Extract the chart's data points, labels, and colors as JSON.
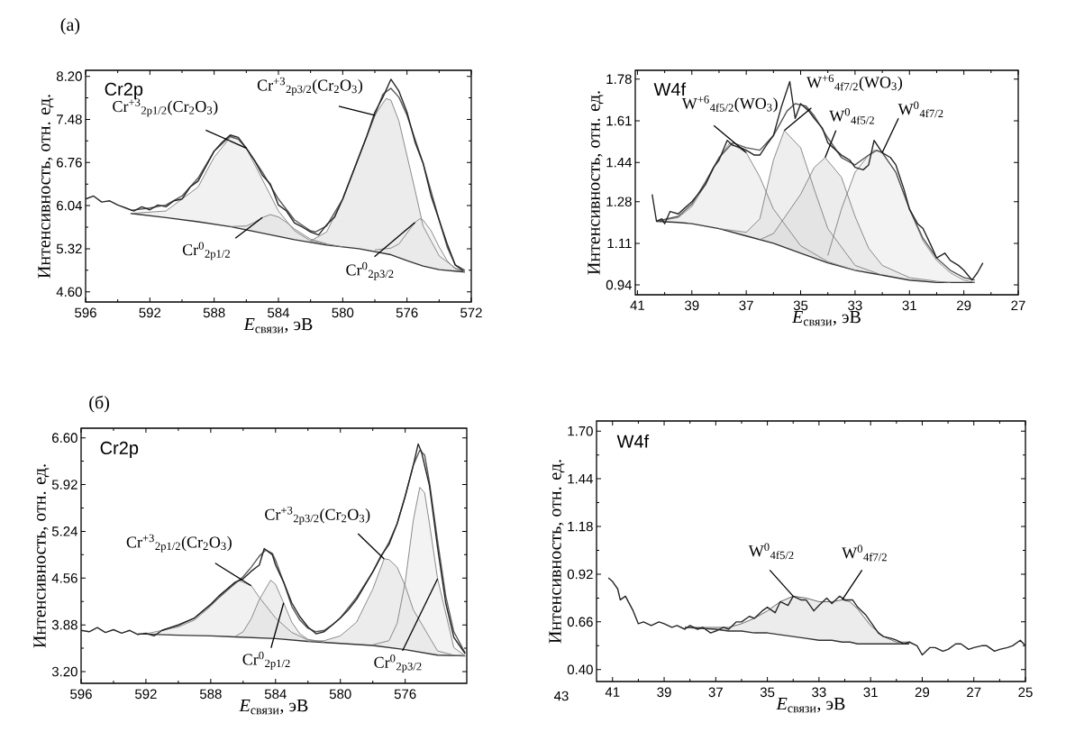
{
  "chart_data": [
    {
      "type": "line",
      "title": "Cr2p",
      "xlabel": "*E*$_{связи}$, эВ",
      "ylabel": "Интенсивность, отн. ед.",
      "xlim": [
        596,
        572
      ],
      "ylim": [
        4.43,
        8.3
      ],
      "xticks": [
        596,
        592,
        588,
        584,
        580,
        576,
        572
      ],
      "yticks": [
        {
          "value": 4.6,
          "label": "4.60"
        },
        5.32,
        6.04,
        6.76,
        7.48,
        {
          "value": 8.2,
          "label": "8.20"
        }
      ],
      "annotations": [
        {
          "text": "Cr$^{+3}$$_{2p1/2}$(Cr$_{2}$O$_{3}$)",
          "x": 586,
          "y": 7.0
        },
        {
          "text": "Cr$^{+3}$$_{2p3/2}$(Cr$_{2}$O$_{3}$)",
          "x": 578,
          "y": 7.55
        },
        {
          "text": "Cr$^{0}$$_{2p1/2}$",
          "x": 585,
          "y": 5.84
        },
        {
          "text": "Cr$^{0}$$_{2p3/2}$",
          "x": 575.5,
          "y": 5.76
        },
        "(a)"
      ],
      "series": [
        {
          "color": "#333333",
          "x": [
            593.2,
            591,
            589,
            587,
            585,
            583,
            581,
            579,
            577,
            576,
            575,
            574,
            572.4
          ],
          "values": [
            5.91,
            5.84,
            5.77,
            5.69,
            5.58,
            5.47,
            5.38,
            5.32,
            5.22,
            5.12,
            5.03,
            4.97,
            4.93
          ]
        },
        {
          "color": "#7f7f7f",
          "x": [
            593.2,
            591,
            589,
            588,
            587,
            586.5,
            586,
            584,
            583,
            582,
            581,
            580
          ],
          "values": [
            5.91,
            5.95,
            6.35,
            6.85,
            7.18,
            7.15,
            7.0,
            5.95,
            5.62,
            5.45,
            5.4,
            5.35
          ],
          "upper": [
            5.91,
            5.95,
            6.35,
            6.85,
            7.18,
            7.15,
            7.0,
            5.95,
            5.62,
            5.45,
            5.4,
            5.35
          ],
          "lower": [
            5.91,
            5.84,
            5.77,
            5.73,
            5.69,
            5.66,
            5.64,
            5.52,
            5.47,
            5.42,
            5.38,
            5.35
          ]
        },
        {
          "color": "#7f7f7f",
          "x": [
            587,
            586,
            585.5,
            585,
            584.5,
            584,
            583.5,
            583,
            582,
            581
          ],
          "values": [
            5.69,
            5.7,
            5.76,
            5.84,
            5.89,
            5.85,
            5.76,
            5.65,
            5.48,
            5.4
          ],
          "upper": [
            5.69,
            5.7,
            5.76,
            5.84,
            5.89,
            5.85,
            5.76,
            5.65,
            5.48,
            5.4
          ],
          "lower": [
            5.69,
            5.64,
            5.61,
            5.58,
            5.55,
            5.52,
            5.5,
            5.47,
            5.42,
            5.38
          ]
        },
        {
          "color": "#7f7f7f",
          "x": [
            582,
            581,
            580,
            579,
            578,
            577.3,
            577,
            576.5,
            575.5,
            575,
            574.5,
            574,
            573,
            572.4
          ],
          "values": [
            5.45,
            5.6,
            6.15,
            6.85,
            7.55,
            7.83,
            7.8,
            7.45,
            6.3,
            5.7,
            5.45,
            5.2,
            5.0,
            4.93
          ],
          "upper": [
            5.45,
            5.6,
            6.15,
            6.85,
            7.55,
            7.83,
            7.8,
            7.45,
            6.3,
            5.7,
            5.45,
            5.2,
            5.0,
            4.93
          ],
          "lower": [
            5.42,
            5.38,
            5.35,
            5.32,
            5.27,
            5.24,
            5.22,
            5.17,
            5.07,
            5.03,
            5.0,
            4.97,
            4.95,
            4.93
          ]
        },
        {
          "color": "#7f7f7f",
          "x": [
            578,
            577,
            576.5,
            575.5,
            575.2,
            575,
            574.5,
            574,
            573.5,
            573,
            572.4
          ],
          "values": [
            5.3,
            5.33,
            5.4,
            5.76,
            5.82,
            5.8,
            5.62,
            5.35,
            5.12,
            4.98,
            4.94
          ],
          "upper": [
            5.3,
            5.33,
            5.4,
            5.76,
            5.82,
            5.8,
            5.62,
            5.35,
            5.12,
            4.98,
            4.94
          ],
          "lower": [
            5.27,
            5.22,
            5.17,
            5.07,
            5.05,
            5.03,
            5.0,
            4.97,
            4.96,
            4.95,
            4.93
          ]
        },
        {
          "color": "#595959",
          "x": [
            593.2,
            592,
            591,
            590,
            589,
            588,
            587,
            586.5,
            586,
            585,
            584,
            583,
            582,
            581.7,
            581,
            580,
            579,
            578,
            577.5,
            577,
            576.5,
            576,
            575,
            574,
            573.5,
            573,
            572.4
          ],
          "values": [
            5.96,
            6.0,
            6.05,
            6.2,
            6.5,
            6.95,
            7.2,
            7.15,
            7.0,
            6.6,
            6.15,
            5.8,
            5.62,
            5.6,
            5.7,
            6.15,
            6.85,
            7.55,
            7.9,
            8.0,
            7.85,
            7.55,
            6.75,
            5.8,
            5.35,
            5.05,
            4.96
          ]
        },
        {
          "color": "#262626",
          "x": [
            596,
            595.5,
            595,
            594.5,
            594,
            593.5,
            593,
            592.5,
            592,
            591.5,
            591,
            590.5,
            590,
            589.5,
            589,
            588.5,
            588,
            587.5,
            587,
            586.5,
            586,
            585.5,
            585,
            584.5,
            584,
            583.5,
            583,
            582.5,
            582,
            581.5,
            581,
            580.5,
            580,
            579.5,
            579,
            578.5,
            578,
            577.5,
            577,
            576.5,
            576,
            575.5,
            575,
            574.5,
            574,
            573.5,
            573,
            572.5
          ],
          "values": [
            6.15,
            6.2,
            6.1,
            6.12,
            6.05,
            6.0,
            5.95,
            6.02,
            5.97,
            6.05,
            6.02,
            6.12,
            6.15,
            6.35,
            6.45,
            6.7,
            6.95,
            7.1,
            7.22,
            7.18,
            7.0,
            6.8,
            6.55,
            6.4,
            6.05,
            5.95,
            5.75,
            5.68,
            5.6,
            5.55,
            5.72,
            5.85,
            6.15,
            6.5,
            6.85,
            7.2,
            7.6,
            7.85,
            8.15,
            7.95,
            7.6,
            7.1,
            6.75,
            6.2,
            5.8,
            5.4,
            5.05,
            4.95
          ]
        }
      ]
    },
    {
      "type": "line",
      "title": "W4f",
      "xlabel": "*E*$_{связи}$, эВ",
      "ylabel": "Интенсивность, отн. ед.",
      "xlim": [
        41.08,
        27
      ],
      "ylim": [
        0.9,
        1.816
      ],
      "xticks": [
        41,
        39,
        37,
        35,
        33,
        31,
        29,
        27
      ],
      "yticks": [
        0.94,
        1.11,
        1.28,
        1.44,
        1.61,
        1.78
      ],
      "annotations": [
        {
          "text": "W$^{+6}$$_{4f5/2}$(WO$_{3}$)",
          "x": 37,
          "y": 1.48
        },
        {
          "text": "W$^{+6}$$_{4f7/2}$(WO$_{3}$)",
          "x": 35.6,
          "y": 1.57
        },
        {
          "text": "W$^{0}$$_{4f5/2}$",
          "x": 34.1,
          "y": 1.46
        },
        {
          "text": "W$^{0}$$_{4f7/2}$",
          "x": 32,
          "y": 1.48
        }
      ],
      "series": [
        {
          "color": "#333333",
          "x": [
            40.3,
            39.5,
            39,
            38,
            37,
            36,
            35,
            34,
            33,
            32,
            31,
            30,
            29,
            28.6
          ],
          "values": [
            1.2,
            1.195,
            1.19,
            1.17,
            1.14,
            1.11,
            1.07,
            1.03,
            1.0,
            0.98,
            0.96,
            0.95,
            0.95,
            0.95
          ]
        },
        {
          "color": "#7f7f7f",
          "x": [
            40.3,
            39.5,
            39,
            38.5,
            38,
            37.6,
            37,
            36.5,
            36,
            35,
            34,
            33
          ],
          "values": [
            1.2,
            1.215,
            1.26,
            1.35,
            1.46,
            1.52,
            1.48,
            1.38,
            1.25,
            1.1,
            1.035,
            1.0
          ],
          "upper": [
            1.2,
            1.215,
            1.26,
            1.35,
            1.46,
            1.52,
            1.48,
            1.38,
            1.25,
            1.1,
            1.035,
            1.0
          ],
          "lower": [
            1.2,
            1.195,
            1.19,
            1.18,
            1.17,
            1.16,
            1.14,
            1.125,
            1.11,
            1.07,
            1.03,
            1.0
          ]
        },
        {
          "color": "#7f7f7f",
          "x": [
            38,
            37,
            36.5,
            36,
            35.6,
            35,
            34.5,
            34,
            33,
            32
          ],
          "values": [
            1.17,
            1.155,
            1.21,
            1.45,
            1.57,
            1.5,
            1.33,
            1.17,
            1.02,
            0.98
          ],
          "upper": [
            1.17,
            1.155,
            1.21,
            1.45,
            1.57,
            1.5,
            1.33,
            1.17,
            1.02,
            0.98
          ],
          "lower": [
            1.17,
            1.14,
            1.125,
            1.11,
            1.095,
            1.07,
            1.05,
            1.03,
            1.0,
            0.98
          ]
        },
        {
          "color": "#7f7f7f",
          "x": [
            36.5,
            36,
            35,
            34.5,
            34.1,
            33.5,
            33,
            32.5,
            32,
            31,
            30,
            29.5
          ],
          "values": [
            1.125,
            1.15,
            1.31,
            1.42,
            1.46,
            1.38,
            1.22,
            1.09,
            1.02,
            0.97,
            0.955,
            0.95
          ],
          "upper": [
            1.125,
            1.15,
            1.31,
            1.42,
            1.46,
            1.38,
            1.22,
            1.09,
            1.02,
            0.97,
            0.955,
            0.95
          ],
          "lower": [
            1.125,
            1.11,
            1.07,
            1.05,
            1.035,
            1.015,
            1.0,
            0.99,
            0.98,
            0.96,
            0.95,
            0.95
          ]
        },
        {
          "color": "#7f7f7f",
          "x": [
            34,
            33.5,
            33,
            32.5,
            32.3,
            32,
            31.5,
            31,
            30.5,
            30,
            29.5,
            29,
            28.6
          ],
          "values": [
            1.06,
            1.25,
            1.4,
            1.47,
            1.49,
            1.48,
            1.4,
            1.25,
            1.12,
            1.04,
            0.99,
            0.96,
            0.95
          ],
          "upper": [
            1.06,
            1.25,
            1.4,
            1.47,
            1.49,
            1.48,
            1.4,
            1.25,
            1.12,
            1.04,
            0.99,
            0.96,
            0.95
          ],
          "lower": [
            1.03,
            1.015,
            1.0,
            0.99,
            0.985,
            0.98,
            0.97,
            0.96,
            0.955,
            0.95,
            0.95,
            0.95,
            0.95
          ]
        },
        {
          "color": "#595959",
          "x": [
            40.3,
            39.5,
            39,
            38.5,
            38,
            37.5,
            37,
            36.5,
            36,
            35.5,
            35.2,
            34.8,
            34.5,
            34,
            33.5,
            33,
            32.5,
            32.2,
            32,
            31.5,
            31,
            30.5,
            30,
            29.5,
            29,
            28.6
          ],
          "values": [
            1.2,
            1.22,
            1.27,
            1.36,
            1.46,
            1.52,
            1.5,
            1.49,
            1.55,
            1.65,
            1.68,
            1.67,
            1.63,
            1.54,
            1.46,
            1.43,
            1.47,
            1.49,
            1.48,
            1.4,
            1.25,
            1.13,
            1.05,
            1.0,
            0.97,
            0.96
          ]
        },
        {
          "color": "#262626",
          "x": [
            40.46,
            40.3,
            40.1,
            40,
            39.8,
            39.5,
            39.2,
            39,
            38.7,
            38.5,
            38.2,
            38,
            37.7,
            37.5,
            37.2,
            37,
            36.7,
            36.5,
            36.2,
            36,
            35.7,
            35.4,
            35.2,
            35,
            34.7,
            34.5,
            34.2,
            34,
            33.7,
            33.5,
            33.2,
            33,
            32.7,
            32.5,
            32.3,
            32,
            31.7,
            31.5,
            31.2,
            31,
            30.7,
            30.5,
            30.2,
            30,
            29.7,
            29.5,
            29.2,
            29,
            28.7,
            28.5,
            28.3
          ],
          "values": [
            1.31,
            1.2,
            1.21,
            1.19,
            1.24,
            1.23,
            1.26,
            1.28,
            1.32,
            1.35,
            1.42,
            1.45,
            1.53,
            1.51,
            1.5,
            1.49,
            1.47,
            1.47,
            1.52,
            1.55,
            1.67,
            1.77,
            1.62,
            1.68,
            1.65,
            1.62,
            1.58,
            1.52,
            1.49,
            1.47,
            1.45,
            1.42,
            1.41,
            1.43,
            1.53,
            1.48,
            1.46,
            1.43,
            1.33,
            1.25,
            1.19,
            1.17,
            1.1,
            1.05,
            1.07,
            1.04,
            1.02,
            1.0,
            0.96,
            0.99,
            1.03
          ]
        }
      ]
    },
    {
      "type": "line",
      "title": "Cr2p",
      "xlabel": "*E*$_{связи}$, эВ",
      "ylabel": "Интенсивность, отн. ед.",
      "xlim": [
        596,
        572.2
      ],
      "ylim": [
        3.03,
        6.74
      ],
      "xticks": [
        596,
        592,
        588,
        584,
        580,
        576
      ],
      "yticks": [
        {
          "value": 3.2,
          "label": "3.20"
        },
        3.88,
        4.56,
        5.24,
        5.92,
        {
          "value": 6.6,
          "label": "6.60"
        }
      ],
      "annotations": [
        {
          "text": "Cr$^{+3}$$_{2p1/2}$(Cr$_{2}$O$_{3}$)",
          "x": 585.5,
          "y": 4.45
        },
        {
          "text": "Cr$^{+3}$$_{2p3/2}$(Cr$_{2}$O$_{3}$)",
          "x": 577.3,
          "y": 4.84
        },
        {
          "text": "Cr$^{0}$$_{2p1/2}$",
          "x": 583.5,
          "y": 4.2
        },
        {
          "text": "Cr$^{0}$$_{2p3/2}$",
          "x": 574,
          "y": 4.55
        },
        "(б)"
      ],
      "series": [
        {
          "color": "#333333",
          "x": [
            592.5,
            590,
            588,
            586,
            584,
            582,
            580,
            578,
            576,
            574,
            572.3
          ],
          "values": [
            3.75,
            3.73,
            3.72,
            3.7,
            3.68,
            3.64,
            3.61,
            3.58,
            3.52,
            3.44,
            3.43
          ]
        },
        {
          "color": "#7f7f7f",
          "x": [
            592,
            590,
            589,
            588,
            587,
            586.3,
            585.5,
            585,
            584,
            583,
            582,
            581
          ],
          "values": [
            3.75,
            3.85,
            3.95,
            4.15,
            4.4,
            4.53,
            4.45,
            4.28,
            3.98,
            3.77,
            3.66,
            3.63
          ],
          "upper": [
            3.75,
            3.85,
            3.95,
            4.15,
            4.4,
            4.53,
            4.45,
            4.28,
            3.98,
            3.77,
            3.66,
            3.63
          ],
          "lower": [
            3.75,
            3.73,
            3.73,
            3.72,
            3.71,
            3.7,
            3.7,
            3.69,
            3.68,
            3.66,
            3.64,
            3.63
          ]
        },
        {
          "color": "#7f7f7f",
          "x": [
            586.5,
            586,
            585.5,
            585,
            584.3,
            584,
            583.5,
            583,
            582.5,
            582,
            581
          ],
          "values": [
            3.71,
            3.78,
            3.97,
            4.25,
            4.53,
            4.47,
            4.2,
            3.92,
            3.75,
            3.67,
            3.63
          ],
          "upper": [
            3.71,
            3.78,
            3.97,
            4.25,
            4.53,
            4.47,
            4.2,
            3.92,
            3.75,
            3.67,
            3.63
          ],
          "lower": [
            3.71,
            3.7,
            3.7,
            3.69,
            3.68,
            3.68,
            3.67,
            3.66,
            3.65,
            3.64,
            3.63
          ]
        },
        {
          "color": "#7f7f7f",
          "x": [
            582,
            581,
            580,
            579,
            578,
            577.3,
            577,
            576.5,
            576,
            575.5,
            574,
            573,
            572.3
          ],
          "values": [
            3.64,
            3.65,
            3.72,
            3.92,
            4.4,
            4.84,
            4.83,
            4.72,
            4.45,
            4.1,
            3.5,
            3.44,
            3.43
          ],
          "upper": [
            3.64,
            3.65,
            3.72,
            3.92,
            4.4,
            4.84,
            4.83,
            4.72,
            4.45,
            4.1,
            3.5,
            3.44,
            3.43
          ],
          "lower": [
            3.64,
            3.63,
            3.61,
            3.6,
            3.58,
            3.56,
            3.55,
            3.54,
            3.52,
            3.5,
            3.44,
            3.44,
            3.43
          ]
        },
        {
          "color": "#7f7f7f",
          "x": [
            578,
            577,
            576.5,
            576,
            575.5,
            575.1,
            574.8,
            574.5,
            574,
            573,
            572.3
          ],
          "values": [
            3.59,
            3.65,
            3.9,
            4.5,
            5.4,
            5.88,
            5.8,
            5.35,
            4.55,
            3.55,
            3.43
          ],
          "upper": [
            3.59,
            3.65,
            3.9,
            4.5,
            5.4,
            5.88,
            5.8,
            5.35,
            4.55,
            3.55,
            3.43
          ],
          "lower": [
            3.58,
            3.55,
            3.54,
            3.52,
            3.5,
            3.48,
            3.47,
            3.46,
            3.44,
            3.44,
            3.43
          ]
        },
        {
          "color": "#595959",
          "x": [
            591,
            590,
            589,
            588,
            587,
            586,
            585.5,
            585,
            584.6,
            584.2,
            584,
            583.5,
            583,
            582.5,
            582,
            581.5,
            581,
            580.5,
            580,
            579,
            578,
            577,
            576.5,
            576,
            575.5,
            575.1,
            574.8,
            574.5,
            574,
            573.5,
            573,
            572.3
          ],
          "values": [
            3.8,
            3.87,
            3.98,
            4.17,
            4.38,
            4.58,
            4.72,
            4.88,
            4.97,
            4.92,
            4.82,
            4.5,
            4.15,
            3.95,
            3.83,
            3.78,
            3.8,
            3.88,
            3.98,
            4.28,
            4.65,
            5.08,
            5.35,
            5.75,
            6.2,
            6.42,
            6.35,
            5.95,
            5.1,
            4.3,
            3.78,
            3.47
          ]
        },
        {
          "color": "#262626",
          "x": [
            596,
            595.5,
            595,
            594.5,
            594,
            593.5,
            593,
            592.5,
            592,
            591.5,
            591,
            590.5,
            590,
            589.5,
            589,
            588.5,
            588,
            587.5,
            587,
            586.5,
            586,
            585.5,
            585,
            584.7,
            584.2,
            584,
            583.5,
            583,
            582.5,
            582,
            581.5,
            581,
            580.5,
            580,
            579.5,
            579,
            578.5,
            578,
            577.5,
            577,
            576.5,
            576,
            575.5,
            575.2,
            575,
            574.5,
            574,
            573.5,
            573,
            572.3
          ],
          "values": [
            3.8,
            3.78,
            3.84,
            3.77,
            3.81,
            3.76,
            3.8,
            3.74,
            3.76,
            3.72,
            3.8,
            3.84,
            3.88,
            3.93,
            3.98,
            4.08,
            4.18,
            4.3,
            4.4,
            4.5,
            4.55,
            4.66,
            4.75,
            4.99,
            4.9,
            4.75,
            4.5,
            4.2,
            4.0,
            3.85,
            3.75,
            3.78,
            3.88,
            3.98,
            4.1,
            4.25,
            4.45,
            4.65,
            4.88,
            5.05,
            5.35,
            5.75,
            6.2,
            6.51,
            6.4,
            5.9,
            5.0,
            4.2,
            3.7,
            3.46
          ]
        }
      ]
    },
    {
      "type": "line",
      "title": "W4f",
      "xlabel": "*E*$_{связи}$, эВ",
      "ylabel": "Интенсивность, отн. ед.",
      "xlim": [
        41.62,
        25
      ],
      "ylim": [
        0.335,
        1.755
      ],
      "xticks": [
        41,
        39,
        37,
        35,
        33,
        31,
        29,
        27,
        25
      ],
      "yticks": [
        {
          "value": 0.4,
          "label": "0.40"
        },
        0.66,
        0.92,
        1.18,
        1.44,
        {
          "value": 1.7,
          "label": "1.70"
        }
      ],
      "annotations": [
        {
          "text": "W$^{0}$$_{4f5/2}$",
          "x": 34,
          "y": 0.8
        },
        {
          "text": "W$^{0}$$_{4f7/2}$",
          "x": 32.1,
          "y": 0.78
        },
        "43"
      ],
      "series": [
        {
          "color": "#333333",
          "x": [
            38.2,
            37,
            36.5,
            36,
            35.5,
            35,
            34.5,
            34,
            33.5,
            33,
            32.5,
            32.1,
            31.8,
            31.5,
            31,
            30.5,
            30,
            29.5
          ],
          "values": [
            0.63,
            0.62,
            0.61,
            0.61,
            0.6,
            0.6,
            0.59,
            0.58,
            0.57,
            0.56,
            0.56,
            0.55,
            0.55,
            0.54,
            0.54,
            0.54,
            0.54,
            0.54
          ]
        },
        {
          "color": "#595959",
          "x": [
            38.2,
            36.5,
            36,
            35.5,
            35,
            34.5,
            34,
            33.5,
            33,
            32.5,
            32.1,
            31.8,
            31.5,
            31,
            30.5,
            30,
            29.5
          ],
          "values": [
            0.63,
            0.63,
            0.65,
            0.68,
            0.72,
            0.77,
            0.8,
            0.79,
            0.77,
            0.77,
            0.78,
            0.77,
            0.73,
            0.64,
            0.58,
            0.55,
            0.55
          ],
          "upper": [
            0.63,
            0.63,
            0.65,
            0.68,
            0.72,
            0.77,
            0.8,
            0.79,
            0.77,
            0.77,
            0.78,
            0.77,
            0.73,
            0.64,
            0.58,
            0.55,
            0.55
          ],
          "lower": [
            0.63,
            0.61,
            0.61,
            0.6,
            0.6,
            0.59,
            0.58,
            0.57,
            0.56,
            0.56,
            0.55,
            0.55,
            0.54,
            0.54,
            0.54,
            0.54,
            0.54
          ]
        },
        {
          "color": "#262626",
          "x": [
            41.16,
            41,
            40.8,
            40.7,
            40.5,
            40.2,
            40,
            39.8,
            39.5,
            39.2,
            39,
            38.7,
            38.5,
            38.2,
            38,
            37.7,
            37.5,
            37.2,
            37,
            36.7,
            36.5,
            36.2,
            36,
            35.7,
            35.5,
            35.2,
            35,
            34.7,
            34.5,
            34.2,
            34,
            33.7,
            33.5,
            33.2,
            33,
            32.7,
            32.5,
            32.2,
            32,
            31.7,
            31.5,
            31.2,
            31,
            30.7,
            30.5,
            30.2,
            30,
            29.7,
            29.5,
            29.2,
            29,
            28.7,
            28.5,
            28.2,
            28,
            27.7,
            27.5,
            27.2,
            27,
            26.7,
            26.5,
            26.2,
            26,
            25.7,
            25.5,
            25.2,
            25
          ],
          "values": [
            0.9,
            0.88,
            0.84,
            0.78,
            0.8,
            0.72,
            0.65,
            0.66,
            0.64,
            0.66,
            0.65,
            0.63,
            0.64,
            0.62,
            0.64,
            0.62,
            0.63,
            0.6,
            0.61,
            0.63,
            0.62,
            0.66,
            0.66,
            0.69,
            0.68,
            0.72,
            0.74,
            0.71,
            0.77,
            0.75,
            0.8,
            0.78,
            0.78,
            0.72,
            0.75,
            0.79,
            0.76,
            0.8,
            0.78,
            0.78,
            0.74,
            0.7,
            0.66,
            0.6,
            0.58,
            0.57,
            0.56,
            0.54,
            0.55,
            0.53,
            0.48,
            0.52,
            0.52,
            0.5,
            0.51,
            0.54,
            0.54,
            0.51,
            0.52,
            0.53,
            0.53,
            0.5,
            0.51,
            0.52,
            0.53,
            0.56,
            0.53
          ]
        }
      ]
    }
  ]
}
